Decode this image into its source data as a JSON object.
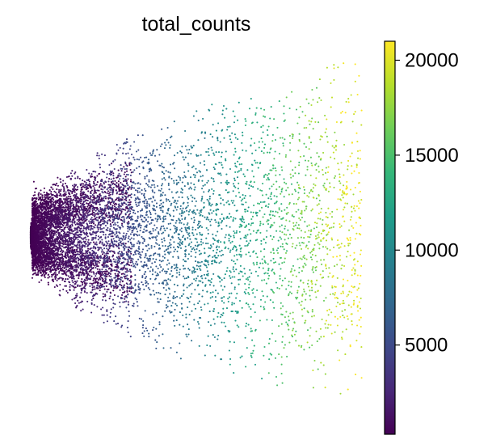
{
  "chart_data": {
    "type": "scatter",
    "title": "total_counts",
    "xlabel": "",
    "ylabel": "",
    "grid": false,
    "axes_visible": false,
    "colormap": "viridis",
    "point_count_approx": 6000,
    "shape": "fan opening to the right; densest, lowest-count cells at the left tip, counts increase toward the right",
    "colorbar": {
      "label": "",
      "range": [
        300,
        21000
      ],
      "ticks": [
        5000,
        10000,
        15000,
        20000
      ],
      "tick_labels": [
        "5000",
        "10000",
        "15000",
        "20000"
      ],
      "stops": [
        "#440154",
        "#482878",
        "#3e4989",
        "#31688e",
        "#26828e",
        "#1f9e89",
        "#35b779",
        "#6ece58",
        "#b5de2b",
        "#fde725"
      ]
    }
  }
}
